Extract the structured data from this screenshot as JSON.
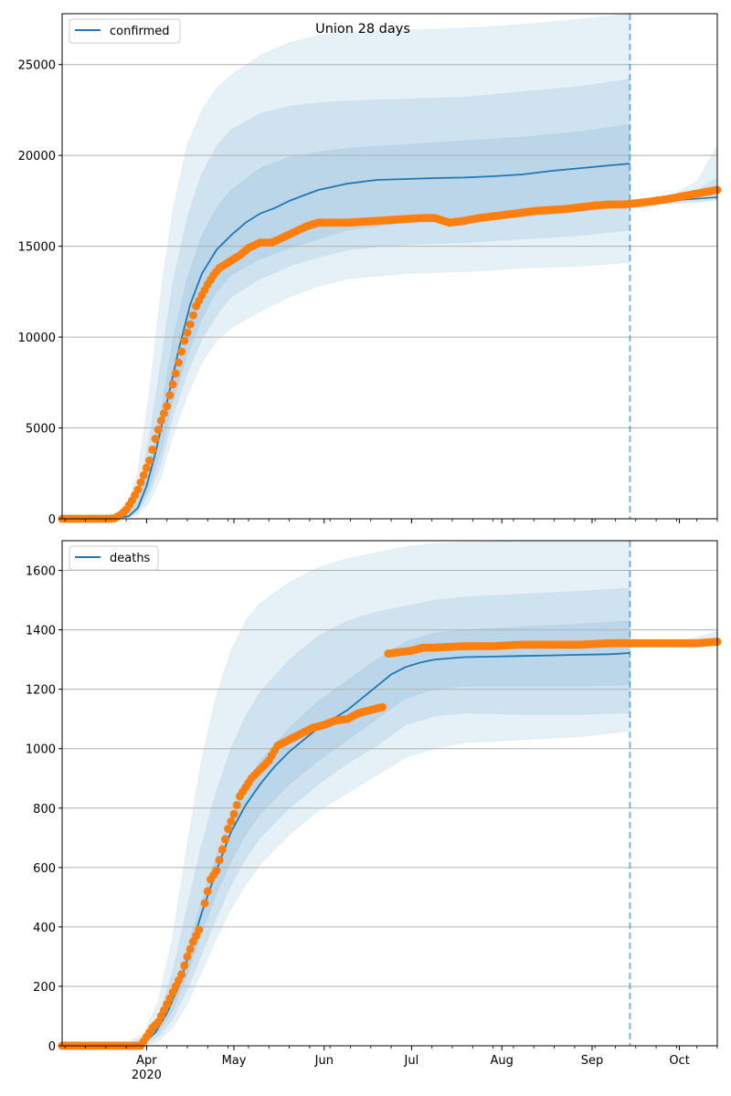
{
  "chart_data": [
    {
      "type": "line",
      "title": "Union 28 days",
      "legend": {
        "label": "confirmed",
        "placement": "top-left"
      },
      "xlabel": "",
      "ylabel": "",
      "x_unit": "days since 2020-03-01",
      "xlim": [
        2,
        227
      ],
      "ylim": [
        0,
        27800
      ],
      "yticks": [
        0,
        5000,
        10000,
        15000,
        20000,
        25000
      ],
      "ytick_labels": [
        "0",
        "5000",
        "10000",
        "15000",
        "20000",
        "25000"
      ],
      "grid": "horizontal",
      "forecast_start_day": 197,
      "median": {
        "name": "confirmed (model median)",
        "x": [
          2,
          20,
          25,
          28,
          31,
          34,
          38,
          42,
          46,
          50,
          55,
          60,
          65,
          70,
          75,
          80,
          85,
          90,
          100,
          110,
          120,
          130,
          140,
          150,
          160,
          170,
          180,
          190,
          197
        ],
        "y": [
          0,
          0,
          150,
          600,
          1800,
          3600,
          6400,
          9300,
          11800,
          13500,
          14800,
          15600,
          16300,
          16800,
          17100,
          17500,
          17800,
          18100,
          18450,
          18650,
          18700,
          18750,
          18780,
          18850,
          18950,
          19150,
          19300,
          19450,
          19550
        ]
      },
      "median_extension": {
        "x": [
          197,
          205,
          215,
          227
        ],
        "y": [
          17300,
          17420,
          17560,
          17700
        ]
      },
      "bands": [
        {
          "name": "outer interval",
          "x": [
            2,
            20,
            24,
            28,
            32,
            36,
            40,
            45,
            50,
            55,
            60,
            70,
            80,
            90,
            100,
            120,
            140,
            160,
            180,
            197
          ],
          "lower": [
            0,
            0,
            20,
            200,
            900,
            2300,
            4500,
            6800,
            8600,
            9800,
            10500,
            11400,
            12200,
            12800,
            13200,
            13500,
            13600,
            13800,
            13900,
            14100
          ],
          "upper": [
            0,
            0,
            600,
            2600,
            7000,
            12600,
            17000,
            20600,
            22500,
            23700,
            24400,
            25500,
            26200,
            26600,
            26800,
            26900,
            27000,
            27200,
            27500,
            27800
          ]
        },
        {
          "name": "middle interval",
          "x": [
            2,
            20,
            24,
            28,
            32,
            36,
            40,
            45,
            50,
            55,
            60,
            70,
            80,
            90,
            100,
            120,
            140,
            160,
            180,
            197
          ],
          "lower": [
            0,
            0,
            60,
            350,
            1400,
            3000,
            5600,
            8000,
            9900,
            11200,
            12200,
            13200,
            13900,
            14400,
            14800,
            15100,
            15200,
            15400,
            15600,
            15900
          ],
          "upper": [
            0,
            0,
            350,
            1500,
            4500,
            8700,
            13000,
            16600,
            19000,
            20500,
            21400,
            22300,
            22700,
            22900,
            23000,
            23100,
            23200,
            23500,
            23800,
            24200
          ]
        },
        {
          "name": "inner interval",
          "x": [
            2,
            20,
            24,
            28,
            32,
            36,
            40,
            45,
            50,
            55,
            60,
            70,
            80,
            90,
            100,
            120,
            140,
            160,
            180,
            197
          ],
          "lower": [
            0,
            0,
            100,
            500,
            1700,
            3700,
            6400,
            9000,
            11000,
            12500,
            13400,
            14300,
            14900,
            15400,
            15900,
            16300,
            16400,
            16600,
            16900,
            17200
          ],
          "upper": [
            0,
            0,
            250,
            900,
            3000,
            6000,
            9800,
            13300,
            15600,
            17100,
            18100,
            19300,
            19900,
            20200,
            20400,
            20600,
            20800,
            21000,
            21300,
            21700
          ]
        }
      ],
      "bands_extension": [
        {
          "x": [
            197,
            210,
            220,
            227
          ],
          "lower": [
            17200,
            17300,
            17400,
            17500
          ],
          "upper": [
            17400,
            17700,
            18600,
            20600
          ]
        },
        {
          "x": [
            197,
            210,
            220,
            227
          ],
          "lower": [
            17250,
            17350,
            17450,
            17550
          ],
          "upper": [
            17350,
            17600,
            18100,
            18800
          ]
        }
      ],
      "observed": {
        "name": "confirmed (observed)",
        "x": [
          2,
          10,
          18,
          20,
          22,
          24,
          26,
          28,
          30,
          32,
          34,
          36,
          38,
          40,
          42,
          44,
          46,
          48,
          50,
          52,
          54,
          56,
          58,
          60,
          63,
          66,
          70,
          74,
          78,
          82,
          86,
          90,
          95,
          100,
          105,
          110,
          115,
          120,
          125,
          130,
          135,
          140,
          145,
          150,
          155,
          160,
          165,
          170,
          175,
          180,
          185,
          190,
          195,
          200,
          205,
          210,
          215,
          220,
          227
        ],
        "y": [
          0,
          0,
          0,
          30,
          200,
          500,
          1000,
          1600,
          2400,
          3200,
          4400,
          5400,
          6200,
          7400,
          8600,
          9800,
          10700,
          11700,
          12300,
          12900,
          13400,
          13800,
          14000,
          14200,
          14500,
          14900,
          15200,
          15200,
          15500,
          15800,
          16100,
          16300,
          16300,
          16300,
          16350,
          16400,
          16450,
          16500,
          16550,
          16550,
          16300,
          16400,
          16550,
          16650,
          16750,
          16850,
          16950,
          17000,
          17050,
          17150,
          17250,
          17300,
          17300,
          17380,
          17480,
          17600,
          17750,
          17900,
          18100
        ]
      }
    },
    {
      "type": "line",
      "title": "",
      "legend": {
        "label": "deaths",
        "placement": "top-left"
      },
      "xlabel": "",
      "ylabel": "",
      "x_unit": "days since 2020-03-01",
      "xlim": [
        2,
        227
      ],
      "ylim": [
        0,
        1700
      ],
      "yticks": [
        0,
        200,
        400,
        600,
        800,
        1000,
        1200,
        1400,
        1600
      ],
      "ytick_labels": [
        "0",
        "200",
        "400",
        "600",
        "800",
        "1000",
        "1200",
        "1400",
        "1600"
      ],
      "xticks": [
        31,
        61,
        92,
        122,
        153,
        184,
        214
      ],
      "xtick_labels": [
        "Apr\n2020",
        "May",
        "Jun",
        "Jul",
        "Aug",
        "Sep",
        "Oct"
      ],
      "grid": "horizontal",
      "forecast_start_day": 197,
      "median": {
        "name": "deaths (model median)",
        "x": [
          2,
          25,
          30,
          34,
          38,
          42,
          46,
          50,
          55,
          60,
          65,
          70,
          75,
          80,
          85,
          90,
          95,
          100,
          105,
          110,
          115,
          120,
          125,
          130,
          140,
          150,
          160,
          170,
          180,
          190,
          197
        ],
        "y": [
          0,
          0,
          10,
          45,
          110,
          200,
          320,
          450,
          590,
          720,
          810,
          880,
          940,
          990,
          1030,
          1070,
          1100,
          1130,
          1170,
          1210,
          1250,
          1275,
          1290,
          1300,
          1308,
          1310,
          1312,
          1314,
          1316,
          1318,
          1322
        ]
      },
      "bands": [
        {
          "name": "outer interval",
          "x": [
            2,
            25,
            30,
            35,
            40,
            45,
            50,
            55,
            60,
            65,
            70,
            80,
            90,
            100,
            110,
            120,
            130,
            140,
            160,
            180,
            197
          ],
          "lower": [
            0,
            0,
            0,
            15,
            60,
            140,
            250,
            360,
            460,
            540,
            610,
            710,
            790,
            850,
            910,
            970,
            1000,
            1020,
            1030,
            1040,
            1060
          ],
          "upper": [
            15,
            15,
            40,
            150,
            370,
            680,
            970,
            1180,
            1330,
            1430,
            1490,
            1560,
            1610,
            1640,
            1660,
            1680,
            1690,
            1695,
            1700,
            1700,
            1700
          ]
        },
        {
          "name": "middle interval",
          "x": [
            2,
            25,
            30,
            35,
            40,
            45,
            50,
            55,
            60,
            65,
            70,
            80,
            90,
            100,
            110,
            120,
            130,
            140,
            160,
            180,
            197
          ],
          "lower": [
            5,
            5,
            5,
            30,
            90,
            190,
            310,
            430,
            540,
            630,
            700,
            800,
            880,
            950,
            1010,
            1080,
            1110,
            1120,
            1115,
            1115,
            1120
          ],
          "upper": [
            10,
            10,
            25,
            100,
            250,
            470,
            680,
            860,
            1000,
            1110,
            1190,
            1300,
            1380,
            1430,
            1460,
            1480,
            1500,
            1510,
            1520,
            1530,
            1540
          ]
        },
        {
          "name": "inner interval",
          "x": [
            2,
            25,
            30,
            35,
            40,
            45,
            50,
            55,
            60,
            65,
            70,
            80,
            90,
            100,
            110,
            120,
            130,
            140,
            160,
            180,
            197
          ],
          "lower": [
            6,
            6,
            8,
            45,
            120,
            240,
            380,
            510,
            620,
            710,
            780,
            880,
            960,
            1030,
            1100,
            1170,
            1200,
            1210,
            1210,
            1210,
            1215
          ],
          "upper": [
            9,
            9,
            18,
            70,
            180,
            330,
            490,
            640,
            770,
            880,
            960,
            1070,
            1160,
            1230,
            1300,
            1360,
            1390,
            1400,
            1410,
            1420,
            1430
          ]
        }
      ],
      "bands_extension": [
        {
          "x": [
            197,
            215,
            227
          ],
          "lower": [
            1355,
            1358,
            1360
          ],
          "upper": [
            1360,
            1365,
            1395
          ]
        }
      ],
      "observed": {
        "name": "deaths (observed)",
        "x": [
          2,
          10,
          20,
          29,
          31,
          33,
          35,
          37,
          39,
          41,
          43,
          45,
          47,
          49,
          51,
          53,
          55,
          57,
          59,
          61,
          63,
          65,
          67,
          70,
          73,
          76,
          80,
          84,
          88,
          92,
          96,
          100,
          104,
          108,
          112,
          114,
          118,
          122,
          126,
          130,
          140,
          150,
          160,
          170,
          180,
          190,
          200,
          210,
          220,
          227
        ],
        "y": [
          0,
          0,
          0,
          0,
          30,
          60,
          80,
          120,
          160,
          200,
          240,
          300,
          350,
          390,
          480,
          560,
          590,
          660,
          730,
          780,
          840,
          870,
          900,
          930,
          960,
          1010,
          1030,
          1050,
          1070,
          1080,
          1095,
          1100,
          1120,
          1130,
          1140,
          1320,
          1325,
          1330,
          1340,
          1340,
          1345,
          1345,
          1350,
          1350,
          1350,
          1355,
          1355,
          1355,
          1355,
          1360
        ]
      }
    }
  ]
}
